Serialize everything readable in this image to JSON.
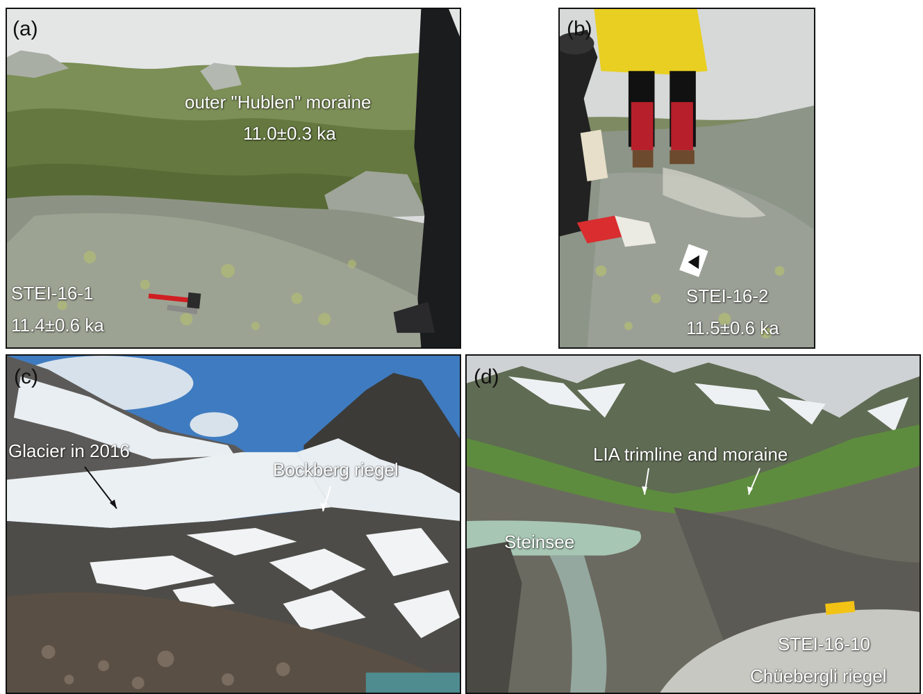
{
  "panels": {
    "a": {
      "label": "(a)",
      "moraine_name": "outer \"Hublen\" moraine",
      "moraine_age": "11.0±0.3 ka",
      "sample_id": "STEI-16-1",
      "sample_age": "11.4±0.6 ka"
    },
    "b": {
      "label": "(b)",
      "sample_id": "STEI-16-2",
      "sample_age": "11.5±0.6 ka"
    },
    "c": {
      "label": "(c)",
      "glacier_label": "Glacier in 2016",
      "riegel_label": "Bockberg riegel"
    },
    "d": {
      "label": "(d)",
      "trimline_label": "LIA trimline and moraine",
      "lake_label": "Steinsee",
      "sample_id": "STEI-16-10",
      "riegel_label": "Chüebergli riegel"
    }
  },
  "colors": {
    "sky_fog": "#d9dcdc",
    "vegetation": "#6f8247",
    "rock": "#8c9186",
    "snow": "#f3f5f6",
    "sky_blue": "#3f7bc0",
    "lake": "#a9c7b5",
    "label_text": "#ffffff",
    "panel_border": "#111111"
  }
}
